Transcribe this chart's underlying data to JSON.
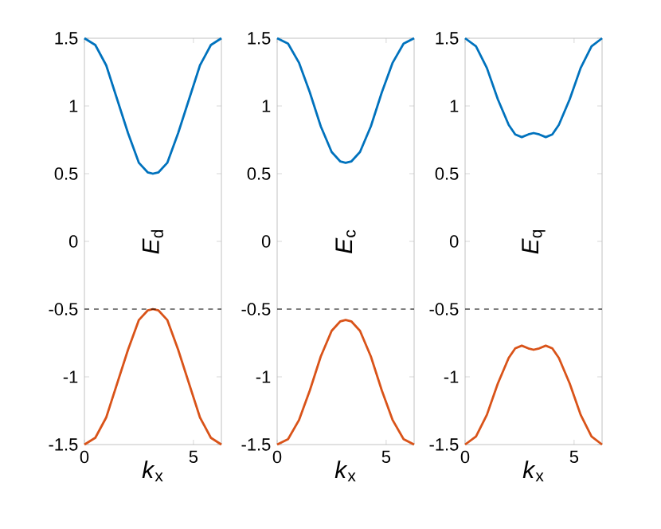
{
  "chart_data": [
    {
      "type": "line",
      "xlabel": "*k*$_{x}$",
      "annotations": [
        "*E*$_{d}$"
      ],
      "xlim": [
        0,
        6.2832
      ],
      "ylim": [
        -1.5,
        1.5
      ],
      "xticks": [
        0,
        5
      ],
      "yticks": [
        -1.5,
        -1,
        -0.5,
        0,
        0.5,
        1,
        1.5
      ],
      "grid": false,
      "line_style": "solid",
      "marker": "none",
      "x": [
        0,
        0.5,
        1.0,
        1.5,
        2.0,
        2.5,
        2.9,
        3.1416,
        3.4,
        3.8,
        4.3,
        4.8,
        5.3,
        5.8,
        6.2832
      ],
      "series": [
        {
          "color": "#0072bd",
          "values": [
            1.5,
            1.45,
            1.3,
            1.05,
            0.8,
            0.58,
            0.51,
            0.5,
            0.51,
            0.58,
            0.8,
            1.05,
            1.3,
            1.45,
            1.5
          ]
        },
        {
          "color": "#d95319",
          "values": [
            -1.5,
            -1.45,
            -1.3,
            -1.05,
            -0.8,
            -0.58,
            -0.51,
            -0.5,
            -0.51,
            -0.58,
            -0.8,
            -1.05,
            -1.3,
            -1.45,
            -1.5
          ]
        }
      ],
      "ref_lines": [
        {
          "axis": "y",
          "value": -0.5,
          "color": "#000000",
          "line_style": "dashed"
        }
      ]
    },
    {
      "type": "line",
      "xlabel": "*k*$_{x}$",
      "annotations": [
        "*E*$_{c}$"
      ],
      "xlim": [
        0,
        6.2832
      ],
      "ylim": [
        -1.5,
        1.5
      ],
      "xticks": [
        0,
        5
      ],
      "yticks": [
        -1.5,
        -1,
        -0.5,
        0,
        0.5,
        1,
        1.5
      ],
      "grid": false,
      "line_style": "solid",
      "marker": "none",
      "x": [
        0,
        0.5,
        1.0,
        1.5,
        2.0,
        2.5,
        2.9,
        3.1416,
        3.4,
        3.8,
        4.3,
        4.8,
        5.3,
        5.8,
        6.2832
      ],
      "series": [
        {
          "color": "#0072bd",
          "values": [
            1.5,
            1.46,
            1.32,
            1.1,
            0.85,
            0.66,
            0.59,
            0.58,
            0.59,
            0.66,
            0.85,
            1.1,
            1.32,
            1.46,
            1.5
          ]
        },
        {
          "color": "#d95319",
          "values": [
            -1.5,
            -1.46,
            -1.32,
            -1.1,
            -0.85,
            -0.66,
            -0.59,
            -0.58,
            -0.59,
            -0.66,
            -0.85,
            -1.1,
            -1.32,
            -1.46,
            -1.5
          ]
        }
      ],
      "ref_lines": [
        {
          "axis": "y",
          "value": -0.5,
          "color": "#000000",
          "line_style": "dashed"
        }
      ]
    },
    {
      "type": "line",
      "xlabel": "*k*$_{x}$",
      "annotations": [
        "*E*$_{q}$"
      ],
      "xlim": [
        0,
        6.2832
      ],
      "ylim": [
        -1.5,
        1.5
      ],
      "xticks": [
        0,
        5
      ],
      "yticks": [
        -1.5,
        -1,
        -0.5,
        0,
        0.5,
        1,
        1.5
      ],
      "grid": false,
      "line_style": "solid",
      "marker": "none",
      "x": [
        0,
        0.5,
        1.0,
        1.5,
        2.0,
        2.3,
        2.6,
        2.9,
        3.1416,
        3.4,
        3.7,
        4.0,
        4.3,
        4.8,
        5.3,
        5.8,
        6.2832
      ],
      "series": [
        {
          "color": "#0072bd",
          "values": [
            1.5,
            1.44,
            1.28,
            1.05,
            0.86,
            0.79,
            0.77,
            0.79,
            0.8,
            0.79,
            0.77,
            0.79,
            0.86,
            1.05,
            1.28,
            1.44,
            1.5
          ]
        },
        {
          "color": "#d95319",
          "values": [
            -1.5,
            -1.44,
            -1.28,
            -1.05,
            -0.86,
            -0.79,
            -0.77,
            -0.79,
            -0.8,
            -0.79,
            -0.77,
            -0.79,
            -0.86,
            -1.05,
            -1.28,
            -1.44,
            -1.5
          ]
        }
      ],
      "ref_lines": [
        {
          "axis": "y",
          "value": -0.5,
          "color": "#000000",
          "line_style": "dashed"
        }
      ]
    }
  ]
}
